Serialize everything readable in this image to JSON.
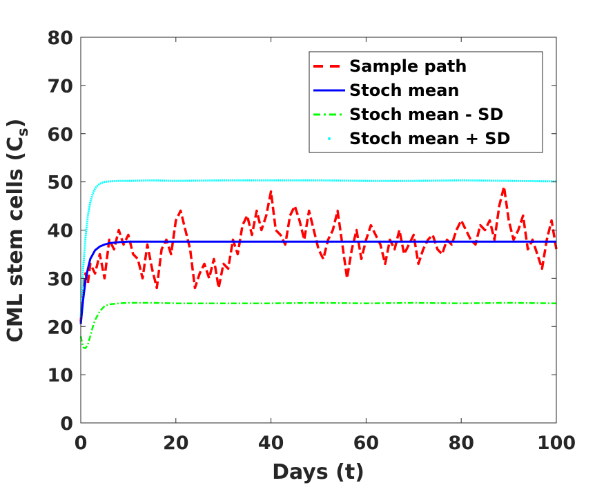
{
  "chart_data": {
    "type": "line",
    "title": "",
    "xlabel": "Days (t)",
    "ylabel_main": "CML stem cells (C",
    "ylabel_sub": "s",
    "ylabel_close": ")",
    "xlim": [
      0,
      100
    ],
    "ylim": [
      0,
      80
    ],
    "xticks": [
      0,
      20,
      40,
      60,
      80,
      100
    ],
    "yticks": [
      0,
      10,
      20,
      30,
      40,
      50,
      60,
      70,
      80
    ],
    "xtick_labels": [
      "0",
      "20",
      "40",
      "60",
      "80",
      "100"
    ],
    "ytick_labels": [
      "0",
      "10",
      "20",
      "30",
      "40",
      "50",
      "60",
      "70",
      "80"
    ],
    "grid": false,
    "legend_position": "top-right",
    "series": [
      {
        "name": "Sample path",
        "style": "dashed",
        "color": "#ff0000",
        "x": [
          0,
          0.5,
          1,
          1.5,
          2,
          3,
          4,
          5,
          6,
          7,
          8,
          9,
          10,
          11,
          12,
          13,
          14,
          15,
          16,
          17,
          18,
          19,
          20,
          21,
          22,
          23,
          24,
          25,
          26,
          27,
          28,
          29,
          30,
          31,
          32,
          33,
          34,
          35,
          36,
          37,
          38,
          39,
          40,
          41,
          42,
          43,
          44,
          45,
          46,
          47,
          48,
          49,
          50,
          51,
          52,
          53,
          54,
          55,
          56,
          57,
          58,
          59,
          60,
          61,
          62,
          63,
          64,
          65,
          66,
          67,
          68,
          69,
          70,
          71,
          72,
          73,
          74,
          75,
          76,
          77,
          78,
          79,
          80,
          81,
          82,
          83,
          84,
          85,
          86,
          87,
          88,
          89,
          90,
          91,
          92,
          93,
          94,
          95,
          96,
          97,
          98,
          99,
          100
        ],
        "y": [
          21,
          27,
          31,
          29,
          33,
          31,
          35,
          30,
          38,
          36,
          40,
          37,
          39,
          35,
          34,
          30,
          37,
          32,
          28,
          36,
          38,
          35,
          42,
          44,
          40,
          36,
          28,
          31,
          33,
          30,
          34,
          28,
          33,
          32,
          38,
          35,
          41,
          43,
          39,
          44,
          40,
          43,
          48,
          40,
          39,
          37,
          43,
          45,
          42,
          38,
          44,
          40,
          36,
          34,
          38,
          40,
          44,
          37,
          30,
          36,
          40,
          34,
          38,
          41,
          39,
          37,
          33,
          38,
          36,
          40,
          35,
          37,
          39,
          33,
          36,
          38,
          39,
          36,
          35,
          38,
          37,
          40,
          42,
          40,
          38,
          37,
          41,
          40,
          42,
          38,
          45,
          49,
          42,
          38,
          40,
          43,
          36,
          38,
          35,
          32,
          38,
          42,
          36
        ]
      },
      {
        "name": "Stoch mean",
        "style": "solid",
        "color": "#0000ff",
        "x": [
          0,
          0.5,
          1,
          1.5,
          2,
          3,
          4,
          5,
          6,
          7,
          8,
          10,
          15,
          20,
          30,
          40,
          50,
          60,
          70,
          80,
          90,
          100
        ],
        "y": [
          20.5,
          25.5,
          29.5,
          32,
          34,
          35.8,
          36.6,
          37,
          37.3,
          37.4,
          37.5,
          37.6,
          37.6,
          37.6,
          37.6,
          37.6,
          37.6,
          37.6,
          37.6,
          37.6,
          37.6,
          37.6
        ]
      },
      {
        "name": "Stoch mean - SD",
        "style": "dashdot",
        "color": "#00ff00",
        "x": [
          0,
          0.3,
          0.6,
          1,
          1.5,
          2,
          2.5,
          3,
          4,
          5,
          6,
          8,
          10,
          15,
          20,
          30,
          40,
          50,
          60,
          70,
          80,
          90,
          100
        ],
        "y": [
          18,
          16.5,
          15.6,
          15.5,
          16.3,
          18,
          19.8,
          21.3,
          23.2,
          24.2,
          24.6,
          24.8,
          24.9,
          24.9,
          24.8,
          24.8,
          24.8,
          24.9,
          24.8,
          24.9,
          24.8,
          24.9,
          24.8
        ]
      },
      {
        "name": "Stoch mean + SD",
        "style": "dotted",
        "color": "#00ffff",
        "x": [
          0,
          0.5,
          1,
          1.5,
          2,
          2.5,
          3,
          3.5,
          4,
          5,
          6,
          8,
          10,
          15,
          20,
          30,
          40,
          50,
          60,
          70,
          80,
          90,
          100
        ],
        "y": [
          22,
          32,
          38.5,
          43,
          45.8,
          47.5,
          48.6,
          49.2,
          49.6,
          50,
          50.1,
          50.2,
          50.2,
          50.3,
          50.2,
          50.3,
          50.3,
          50.3,
          50.2,
          50.2,
          50.3,
          50.2,
          50.1
        ]
      }
    ]
  }
}
